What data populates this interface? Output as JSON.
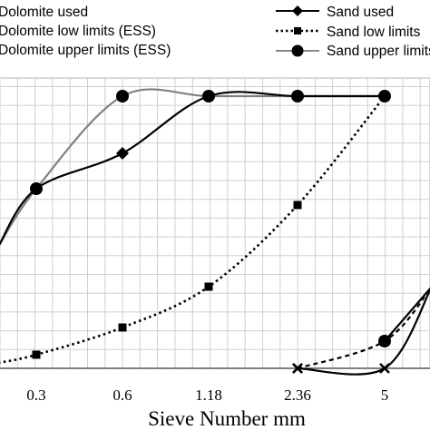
{
  "chart_data": {
    "type": "line",
    "xlabel": "Sieve Number mm",
    "ylabel": "",
    "x_ticks": [
      "0.3",
      "0.6",
      "1.18",
      "2.36",
      "5"
    ],
    "grid": true,
    "legend_placement": "top",
    "legend": [
      {
        "name": "Dolomite used",
        "line_color": "#000000",
        "line_style": "solid",
        "marker": "none"
      },
      {
        "name": "Dolomite low limits (ESS)",
        "line_color": "#000000",
        "line_style": "solid",
        "marker": "none"
      },
      {
        "name": "Dolomite upper limits (ESS)",
        "line_color": "#000000",
        "line_style": "solid",
        "marker": "none"
      },
      {
        "name": "Sand used",
        "line_color": "#000000",
        "line_style": "solid",
        "marker": "diamond"
      },
      {
        "name": "Sand low limits",
        "line_color": "#000000",
        "line_style": "dotted",
        "marker": "square"
      },
      {
        "name": "Sand upper limits",
        "line_color": "#808080",
        "line_style": "solid",
        "marker": "circle"
      }
    ],
    "series": [
      {
        "name": "Sand used",
        "color": "#000000",
        "style": "solid",
        "marker": "diamond",
        "x": [
          "0.3",
          "0.6",
          "1.18",
          "2.36",
          "5"
        ],
        "y": [
          66,
          79,
          100,
          100,
          100
        ]
      },
      {
        "name": "Sand low limits",
        "color": "#000000",
        "style": "dotted",
        "marker": "square",
        "x": [
          "0.3",
          "0.6",
          "1.18",
          "2.36",
          "5"
        ],
        "y": [
          5,
          15,
          30,
          60,
          100
        ]
      },
      {
        "name": "Sand upper limits",
        "color": "#808080",
        "style": "solid",
        "marker": "circle",
        "x": [
          "0.3",
          "0.6",
          "1.18",
          "2.36",
          "5"
        ],
        "y": [
          66,
          100,
          100,
          100,
          100
        ]
      },
      {
        "name": "Dolomite used",
        "color": "#000000",
        "style": "solid",
        "marker": "x",
        "x": [
          "2.36",
          "5"
        ],
        "y": [
          0,
          0
        ]
      },
      {
        "name": "Dolomite low limits (ESS)",
        "color": "#000000",
        "style": "dashed",
        "marker": "x",
        "x": [
          "2.36",
          "5"
        ],
        "y": [
          0,
          10
        ]
      },
      {
        "name": "Dolomite upper limits (ESS)",
        "color": "#000000",
        "style": "solid",
        "marker": "circle",
        "x": [
          "5"
        ],
        "y": [
          10
        ]
      }
    ]
  }
}
